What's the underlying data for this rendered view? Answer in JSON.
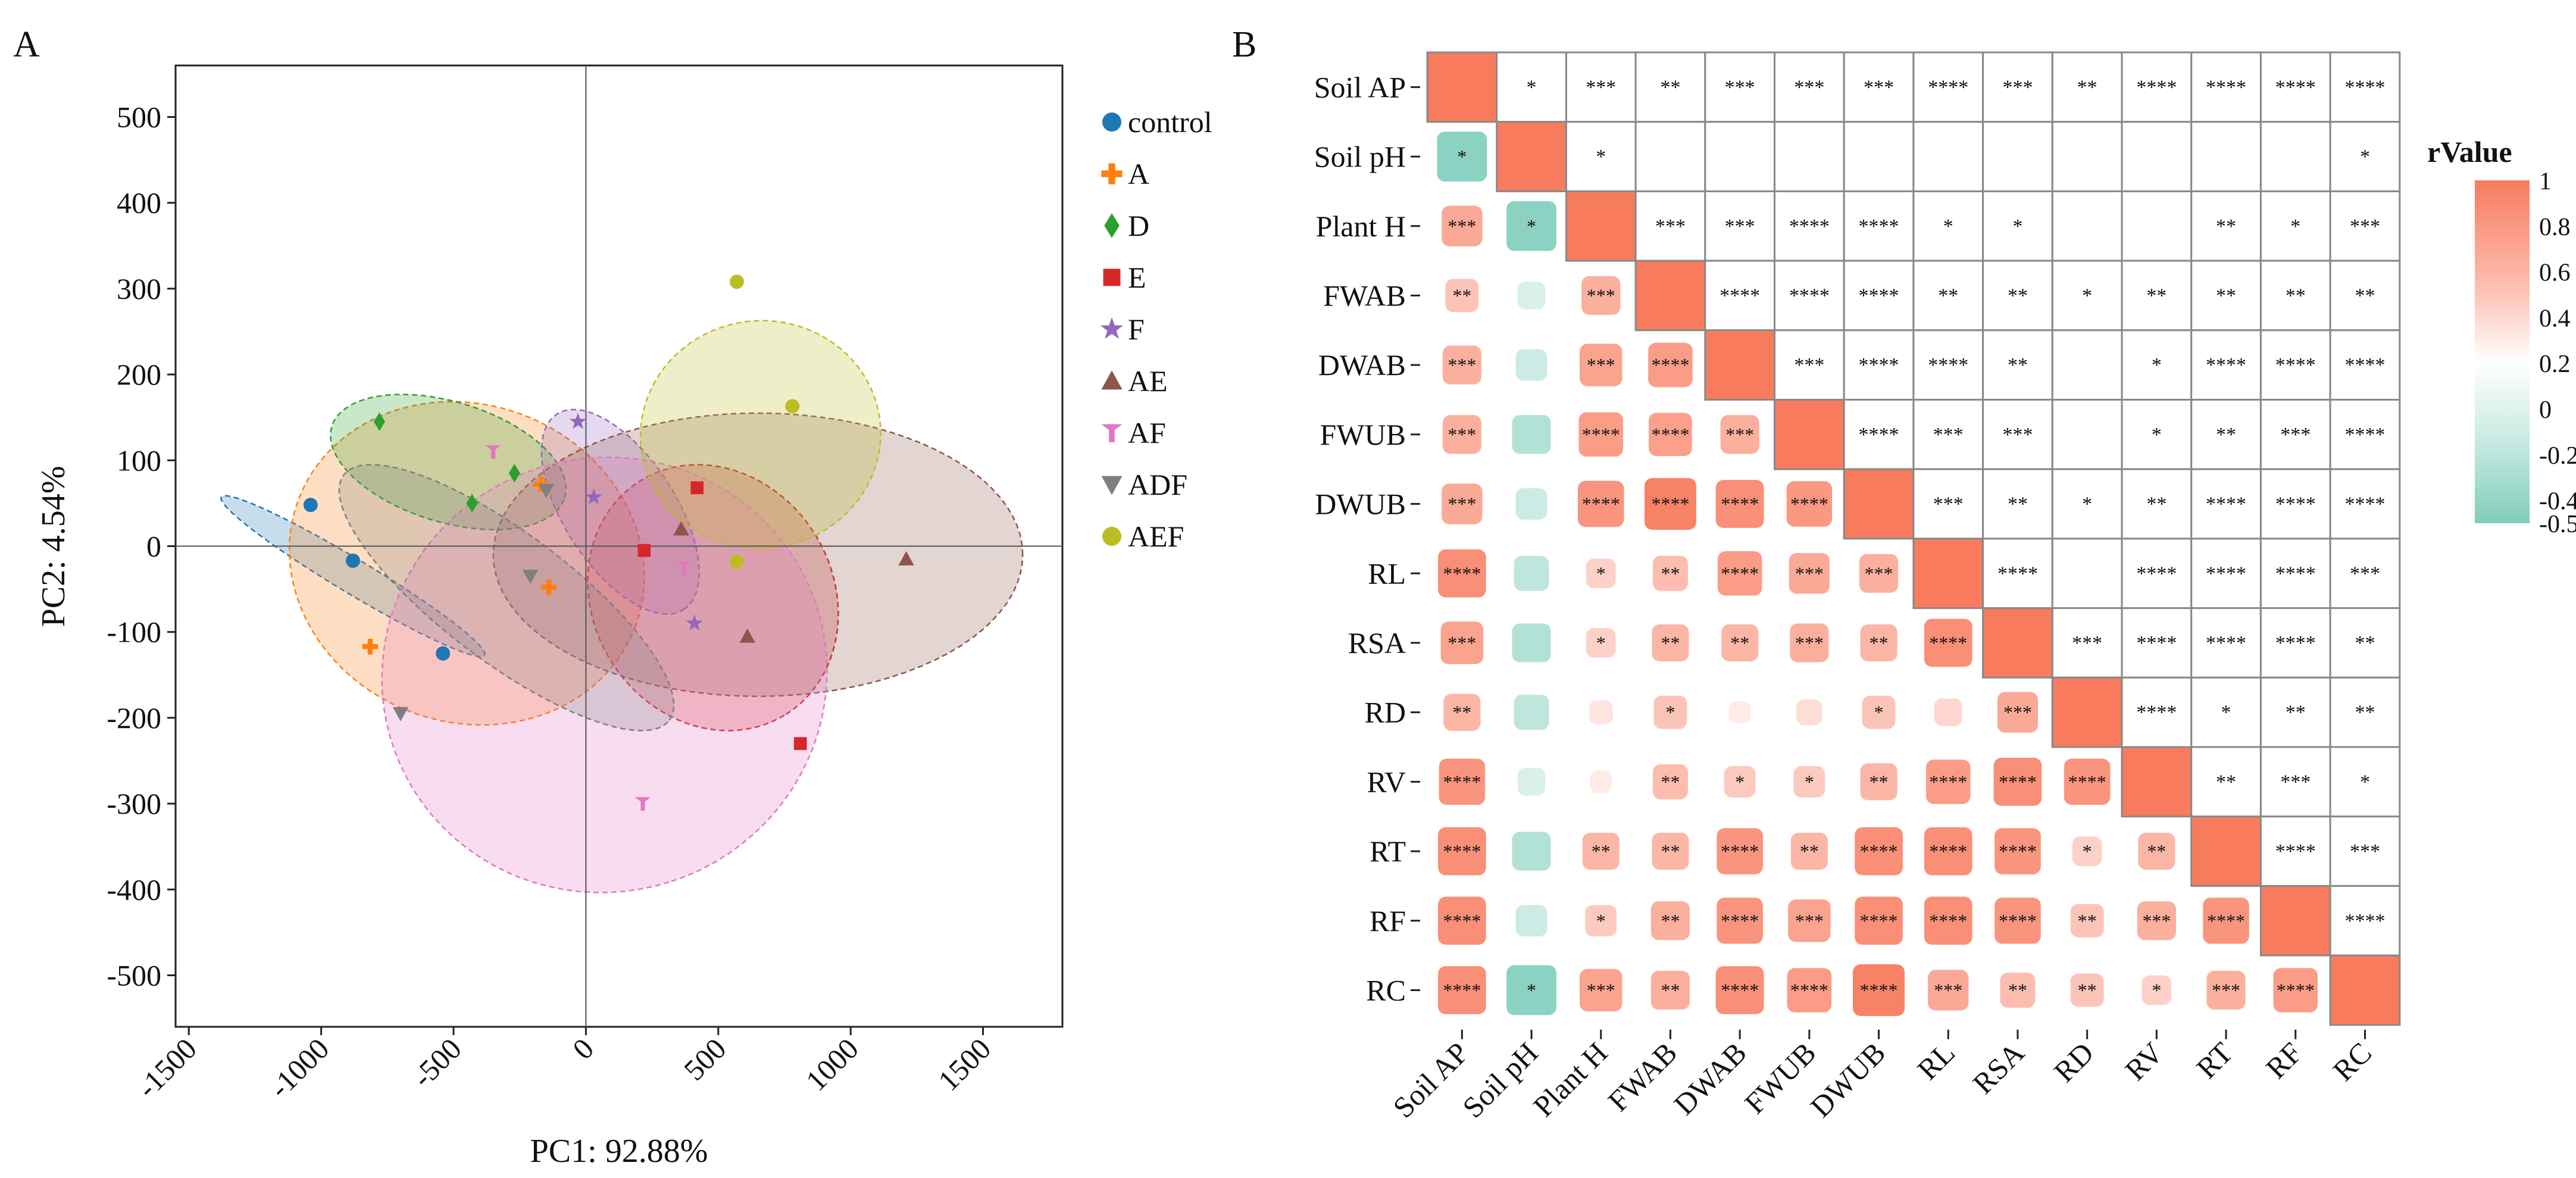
{
  "panel_labels": {
    "a": "A",
    "b": "B"
  },
  "chart_data": [
    {
      "type": "scatter",
      "title": "",
      "xlabel": "PC1: 92.88%",
      "ylabel": "PC2: 4.54%",
      "xlim": [
        -1550,
        1800
      ],
      "ylim": [
        -560,
        560
      ],
      "x_ticks": [
        -1500,
        -1000,
        -500,
        0,
        500,
        1000,
        1500
      ],
      "y_ticks": [
        -500,
        -400,
        -300,
        -200,
        -100,
        0,
        100,
        200,
        300,
        400,
        500
      ],
      "grid": false,
      "legend_position": "right",
      "series": [
        {
          "name": "control",
          "color": "#1f77b4",
          "marker": "circle",
          "points": [
            [
              -1040,
              48
            ],
            [
              -880,
              -17
            ],
            [
              -540,
              -125
            ]
          ],
          "ellipse": {
            "cx": -880,
            "cy": -35,
            "rx": 580,
            "ry": 20,
            "angle": -31
          }
        },
        {
          "name": "A",
          "color": "#ff7f0e",
          "marker": "plus",
          "points": [
            [
              -815,
              -117
            ],
            [
              -170,
              72
            ],
            [
              -140,
              -48
            ]
          ],
          "ellipse": {
            "cx": -450,
            "cy": -20,
            "rx": 680,
            "ry": 185,
            "angle": -21
          }
        },
        {
          "name": "D",
          "color": "#2ca02c",
          "marker": "diamond",
          "points": [
            [
              -780,
              145
            ],
            [
              -430,
              50
            ],
            [
              -270,
              85
            ]
          ],
          "ellipse": {
            "cx": -520,
            "cy": 98,
            "rx": 460,
            "ry": 70,
            "angle": -17
          }
        },
        {
          "name": "E",
          "color": "#d62728",
          "marker": "square",
          "points": [
            [
              420,
              68
            ],
            [
              220,
              -5
            ],
            [
              810,
              -230
            ]
          ],
          "ellipse": {
            "cx": 480,
            "cy": -60,
            "rx": 520,
            "ry": 140,
            "angle": -58
          }
        },
        {
          "name": "F",
          "color": "#9467bd",
          "marker": "star",
          "points": [
            [
              -30,
              145
            ],
            [
              30,
              57
            ],
            [
              410,
              -90
            ]
          ],
          "ellipse": {
            "cx": 130,
            "cy": 40,
            "rx": 440,
            "ry": 65,
            "angle": -57
          }
        },
        {
          "name": "AE",
          "color": "#8c564b",
          "marker": "triangle-up",
          "points": [
            [
              360,
              20
            ],
            [
              610,
              -105
            ],
            [
              1210,
              -15
            ]
          ],
          "ellipse": {
            "cx": 650,
            "cy": -10,
            "rx": 1000,
            "ry": 165,
            "angle": 0
          }
        },
        {
          "name": "AF",
          "color": "#e377c2",
          "marker": "triangle-t",
          "points": [
            [
              -350,
              110
            ],
            [
              370,
              -25
            ],
            [
              215,
              -300
            ]
          ],
          "ellipse": {
            "cx": 70,
            "cy": -150,
            "rx": 820,
            "ry": 260,
            "angle": -72
          }
        },
        {
          "name": "ADF",
          "color": "#7f7f7f",
          "marker": "triangle-down",
          "points": [
            [
              -700,
              -195
            ],
            [
              -210,
              -35
            ],
            [
              -150,
              65
            ]
          ],
          "ellipse": {
            "cx": -300,
            "cy": -60,
            "rx": 770,
            "ry": 75,
            "angle": -37
          }
        },
        {
          "name": "AEF",
          "color": "#bcbd22",
          "marker": "circle",
          "points": [
            [
              570,
              308
            ],
            [
              780,
              163
            ],
            [
              570,
              -18
            ]
          ],
          "ellipse": {
            "cx": 660,
            "cy": 130,
            "rx": 430,
            "ry": 140,
            "angle": -84
          }
        }
      ]
    },
    {
      "type": "heatmap",
      "title": "",
      "labels": [
        "Soil AP",
        "Soil pH",
        "Plant H",
        "FWAB",
        "DWAB",
        "FWUB",
        "DWUB",
        "RL",
        "RSA",
        "RD",
        "RV",
        "RT",
        "RF",
        "RC"
      ],
      "colorbar": {
        "title": "rValue",
        "range": [
          -0.5,
          1
        ],
        "ticks": [
          1,
          0.8,
          0.6,
          0.4,
          0.2,
          0,
          -0.2,
          -0.4,
          -0.5
        ],
        "tick_labels": [
          "1",
          "0.8",
          "0.6",
          "0.4",
          "0.2",
          "0",
          "-0.2",
          "-0.4",
          "-0.5"
        ],
        "colors": {
          "low": "#7fcdbb",
          "mid": "#ffffff",
          "high": "#f87b5e"
        }
      },
      "lower_r": [
        [],
        [
          -0.45
        ],
        [
          0.65,
          -0.45
        ],
        [
          0.45,
          -0.15,
          0.6
        ],
        [
          0.6,
          -0.2,
          0.7,
          0.75
        ],
        [
          0.6,
          -0.3,
          0.75,
          0.72,
          0.6
        ],
        [
          0.65,
          -0.2,
          0.8,
          0.95,
          0.85,
          0.78
        ],
        [
          0.85,
          -0.25,
          0.35,
          0.5,
          0.75,
          0.65,
          0.6
        ],
        [
          0.7,
          -0.3,
          0.35,
          0.55,
          0.55,
          0.6,
          0.55,
          0.85
        ],
        [
          0.55,
          -0.25,
          0.2,
          0.45,
          0.15,
          0.25,
          0.45,
          0.3,
          0.65
        ],
        [
          0.8,
          -0.15,
          0.15,
          0.5,
          0.4,
          0.4,
          0.55,
          0.75,
          0.85,
          0.8
        ],
        [
          0.85,
          -0.3,
          0.55,
          0.55,
          0.8,
          0.55,
          0.85,
          0.85,
          0.8,
          0.35,
          0.55
        ],
        [
          0.85,
          -0.2,
          0.4,
          0.6,
          0.8,
          0.7,
          0.85,
          0.85,
          0.8,
          0.45,
          0.6,
          0.8
        ],
        [
          0.85,
          -0.45,
          0.7,
          0.6,
          0.85,
          0.75,
          0.95,
          0.65,
          0.5,
          0.45,
          0.35,
          0.6,
          0.75
        ]
      ],
      "lower_sig": [
        [],
        [
          "*"
        ],
        [
          "***",
          "*"
        ],
        [
          "**",
          "",
          "***"
        ],
        [
          "***",
          "",
          "***",
          "****"
        ],
        [
          "***",
          "",
          "****",
          "****",
          "***"
        ],
        [
          "***",
          "",
          "****",
          "****",
          "****",
          "****"
        ],
        [
          "****",
          "",
          "*",
          "**",
          "****",
          "***",
          "***"
        ],
        [
          "***",
          "",
          "*",
          "**",
          "**",
          "***",
          "**",
          "****"
        ],
        [
          "**",
          "",
          "",
          "*",
          "",
          "",
          "*",
          "",
          "***"
        ],
        [
          "****",
          "",
          "",
          "**",
          "*",
          "*",
          "**",
          "****",
          "****",
          "****"
        ],
        [
          "****",
          "",
          "**",
          "**",
          "****",
          "**",
          "****",
          "****",
          "****",
          "*",
          "**"
        ],
        [
          "****",
          "",
          "*",
          "**",
          "****",
          "***",
          "****",
          "****",
          "****",
          "**",
          "***",
          "****"
        ],
        [
          "****",
          "*",
          "***",
          "**",
          "****",
          "****",
          "****",
          "***",
          "**",
          "**",
          "*",
          "***",
          "****"
        ]
      ],
      "upper_sig": [
        [
          "",
          "*",
          "***",
          "**",
          "***",
          "***",
          "***",
          "****",
          "***",
          "**",
          "****",
          "****",
          "****",
          "****"
        ],
        [
          "",
          "",
          "*",
          "",
          "",
          "",
          "",
          "",
          "",
          "",
          "",
          "",
          "",
          "*"
        ],
        [
          "",
          "",
          "",
          "***",
          "***",
          "****",
          "****",
          "*",
          "*",
          "",
          "",
          "**",
          "*",
          "***"
        ],
        [
          "",
          "",
          "",
          "",
          "****",
          "****",
          "****",
          "**",
          "**",
          "*",
          "**",
          "**",
          "**",
          "**"
        ],
        [
          "",
          "",
          "",
          "",
          "",
          "***",
          "****",
          "****",
          "**",
          "",
          "*",
          "****",
          "****",
          "****"
        ],
        [
          "",
          "",
          "",
          "",
          "",
          "",
          "****",
          "***",
          "***",
          "",
          "*",
          "**",
          "***",
          "****"
        ],
        [
          "",
          "",
          "",
          "",
          "",
          "",
          "",
          "***",
          "**",
          "*",
          "**",
          "****",
          "****",
          "****"
        ],
        [
          "",
          "",
          "",
          "",
          "",
          "",
          "",
          "",
          "****",
          "",
          "****",
          "****",
          "****",
          "***"
        ],
        [
          "",
          "",
          "",
          "",
          "",
          "",
          "",
          "",
          "",
          "***",
          "****",
          "****",
          "****",
          "**"
        ],
        [
          "",
          "",
          "",
          "",
          "",
          "",
          "",
          "",
          "",
          "",
          "****",
          "*",
          "**",
          "**"
        ],
        [
          "",
          "",
          "",
          "",
          "",
          "",
          "",
          "",
          "",
          "",
          "",
          "**",
          "***",
          "*"
        ],
        [
          "",
          "",
          "",
          "",
          "",
          "",
          "",
          "",
          "",
          "",
          "",
          "",
          "****",
          "***"
        ],
        [
          "",
          "",
          "",
          "",
          "",
          "",
          "",
          "",
          "",
          "",
          "",
          "",
          "",
          "****"
        ],
        [
          "",
          "",
          "",
          "",
          "",
          "",
          "",
          "",
          "",
          "",
          "",
          "",
          "",
          ""
        ]
      ]
    }
  ]
}
